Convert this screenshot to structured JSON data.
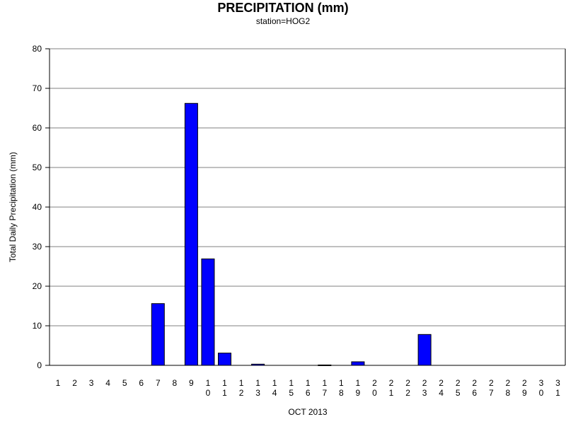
{
  "chart_data": {
    "type": "bar",
    "title": "PRECIPITATION (mm)",
    "subtitle": "station=HOG2",
    "xlabel": "OCT 2013",
    "ylabel": "Total Daily Precipitation (mm)",
    "ylim": [
      0,
      80
    ],
    "yticks": [
      0,
      10,
      20,
      30,
      40,
      50,
      60,
      70,
      80
    ],
    "grid": true,
    "categories": [
      "1",
      "2",
      "3",
      "4",
      "5",
      "6",
      "7",
      "8",
      "9",
      "10",
      "11",
      "12",
      "13",
      "14",
      "15",
      "16",
      "17",
      "18",
      "19",
      "20",
      "21",
      "22",
      "23",
      "24",
      "25",
      "26",
      "27",
      "28",
      "29",
      "30",
      "31"
    ],
    "values": [
      0,
      0,
      0,
      0,
      0,
      0,
      15.6,
      0,
      66.2,
      26.9,
      3.1,
      0,
      0.3,
      0,
      0,
      0,
      0.1,
      0,
      0.9,
      0,
      0,
      0,
      7.8,
      0,
      0,
      0,
      0,
      0,
      0,
      0,
      0
    ],
    "colors": {
      "bar": "#0000ff",
      "grid": "#808080",
      "axis": "#000000"
    }
  }
}
